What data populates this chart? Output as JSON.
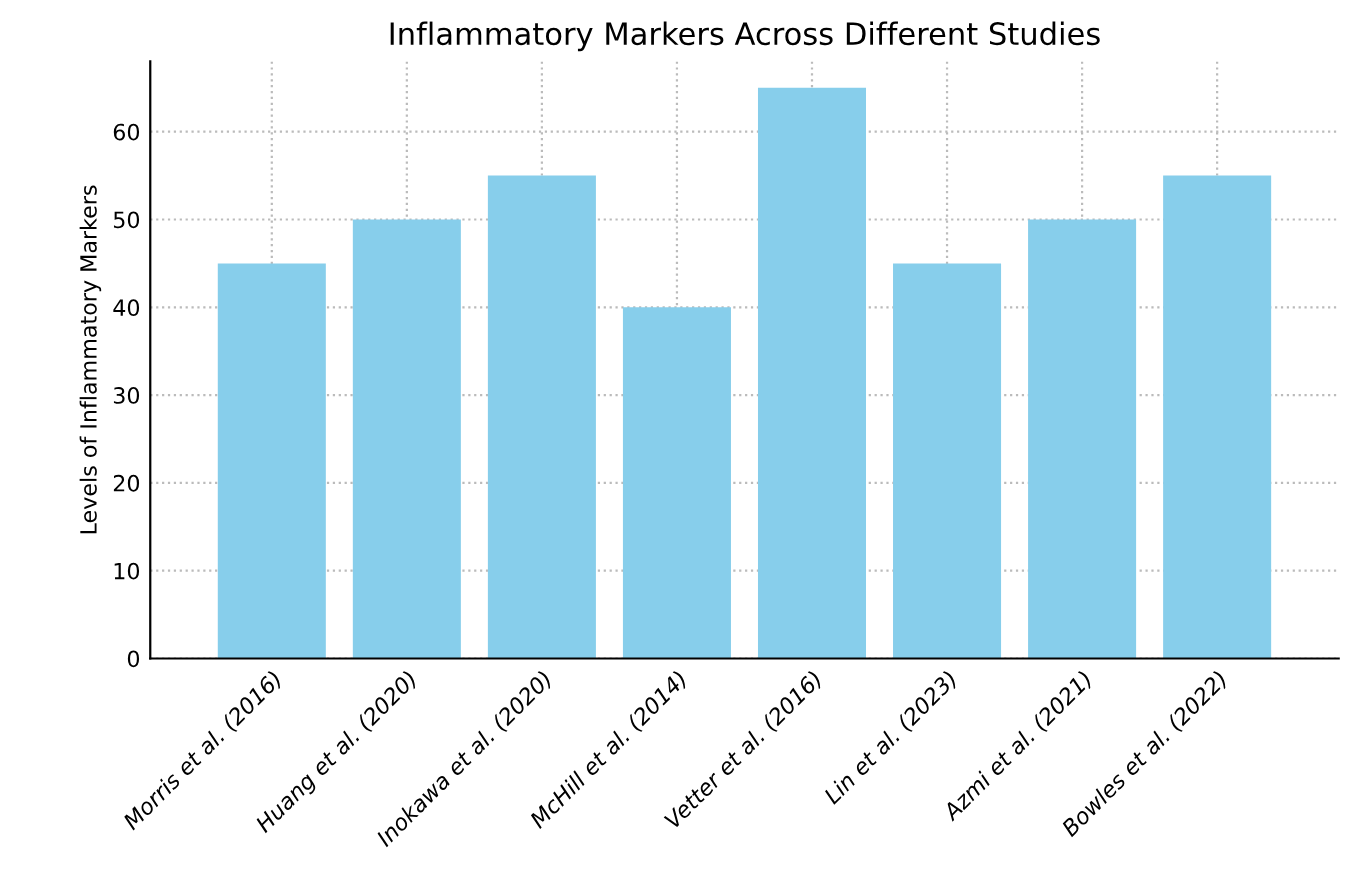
{
  "chart_data": {
    "type": "bar",
    "title": "Inflammatory Markers Across Different Studies",
    "ylabel": "Levels of Inflammatory Markers",
    "categories": [
      "Morris et al. (2016)",
      "Huang et al. (2020)",
      "Inokawa et al. (2020)",
      "McHill et al. (2014)",
      "Vetter et al. (2016)",
      "Lin et al. (2023)",
      "Azmi et al. (2021)",
      "Bowles et al. (2022)"
    ],
    "values": [
      45,
      50,
      55,
      40,
      65,
      45,
      50,
      55
    ],
    "color": "#87ceeb",
    "ylim": [
      0,
      68
    ],
    "yticks": [
      0,
      10,
      20,
      30,
      40,
      50,
      60
    ],
    "grid": true
  }
}
